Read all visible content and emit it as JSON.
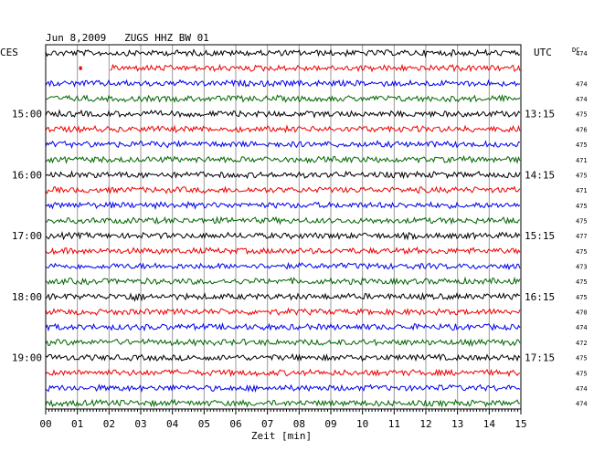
{
  "chart_data": {
    "type": "line",
    "title": "Jun 8,2009   ZUGS HHZ BW 01",
    "xlabel": "Zeit [min]",
    "left_label": "CES",
    "right_label": "UTC",
    "dc_label": "DC",
    "x_ticks": [
      "00",
      "01",
      "02",
      "03",
      "04",
      "05",
      "06",
      "07",
      "08",
      "09",
      "10",
      "11",
      "12",
      "13",
      "14",
      "15"
    ],
    "xlim": [
      0,
      15
    ],
    "grid": true,
    "trace_colors": [
      "#000000",
      "#ee0000",
      "#0000ee",
      "#006600"
    ],
    "left_time_labels": [
      {
        "row": 4,
        "label": "15:00"
      },
      {
        "row": 8,
        "label": "16:00"
      },
      {
        "row": 12,
        "label": "17:00"
      },
      {
        "row": 16,
        "label": "18:00"
      },
      {
        "row": 20,
        "label": "19:00"
      }
    ],
    "right_time_labels": [
      {
        "row": 4,
        "label": "13:15"
      },
      {
        "row": 8,
        "label": "14:15"
      },
      {
        "row": 12,
        "label": "15:15"
      },
      {
        "row": 16,
        "label": "16:15"
      },
      {
        "row": 20,
        "label": "17:15"
      }
    ],
    "dc_values": [
      "474",
      "",
      "474",
      "474",
      "475",
      "476",
      "475",
      "471",
      "475",
      "471",
      "475",
      "475",
      "477",
      "475",
      "473",
      "475",
      "475",
      "470",
      "474",
      "472",
      "475",
      "475",
      "474",
      "474"
    ],
    "gaps": [
      {
        "row": 1,
        "start_min": 0,
        "end_min": 2
      }
    ],
    "event": {
      "row": 16,
      "minute": 2.7
    }
  }
}
